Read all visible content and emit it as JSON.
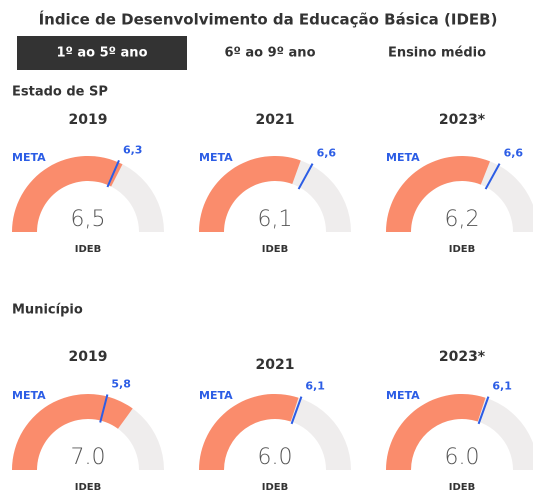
{
  "title": "Índice de Desenvolvimento da Educação Básica (IDEB)",
  "tabs": [
    "1º ao 5º ano",
    "6º ao 9º ano",
    "Ensino médio"
  ],
  "sections": [
    "Estado de SP",
    "Município"
  ],
  "chart_data": [
    {
      "type": "gauge",
      "title": "2019",
      "value": 6.5,
      "value_label": "6,5",
      "value_name": "IDEB",
      "target": 6.3,
      "target_label": "6,3",
      "target_name": "META",
      "ylim": [
        0,
        10
      ],
      "color": "#fa8c6c",
      "track_color": "#efeded",
      "target_color": "#2c5de5"
    },
    {
      "type": "gauge",
      "title": "2021",
      "value": 6.1,
      "value_label": "6,1",
      "value_name": "IDEB",
      "target": 6.6,
      "target_label": "6,6",
      "target_name": "META",
      "ylim": [
        0,
        10
      ],
      "color": "#fa8c6c",
      "track_color": "#efeded",
      "target_color": "#2c5de5"
    },
    {
      "type": "gauge",
      "title": "2023*",
      "value": 6.2,
      "value_label": "6,2",
      "value_name": "IDEB",
      "target": 6.6,
      "target_label": "6,6",
      "target_name": "META",
      "ylim": [
        0,
        10
      ],
      "color": "#fa8c6c",
      "track_color": "#efeded",
      "target_color": "#2c5de5"
    },
    {
      "type": "gauge",
      "title": "2019",
      "value": 7.0,
      "value_label": "7.0",
      "value_name": "IDEB",
      "target": 5.8,
      "target_label": "5,8",
      "target_name": "META",
      "ylim": [
        0,
        10
      ],
      "color": "#fa8c6c",
      "track_color": "#efeded",
      "target_color": "#2c5de5"
    },
    {
      "type": "gauge",
      "title": "2021",
      "value": 6.0,
      "value_label": "6.0",
      "value_name": "IDEB",
      "target": 6.1,
      "target_label": "6,1",
      "target_name": "META",
      "ylim": [
        0,
        10
      ],
      "color": "#fa8c6c",
      "track_color": "#efeded",
      "target_color": "#2c5de5"
    },
    {
      "type": "gauge",
      "title": "2023*",
      "value": 6.0,
      "value_label": "6.0",
      "value_name": "IDEB",
      "target": 6.1,
      "target_label": "6,1",
      "target_name": "META",
      "ylim": [
        0,
        10
      ],
      "color": "#fa8c6c",
      "track_color": "#efeded",
      "target_color": "#2c5de5"
    }
  ]
}
